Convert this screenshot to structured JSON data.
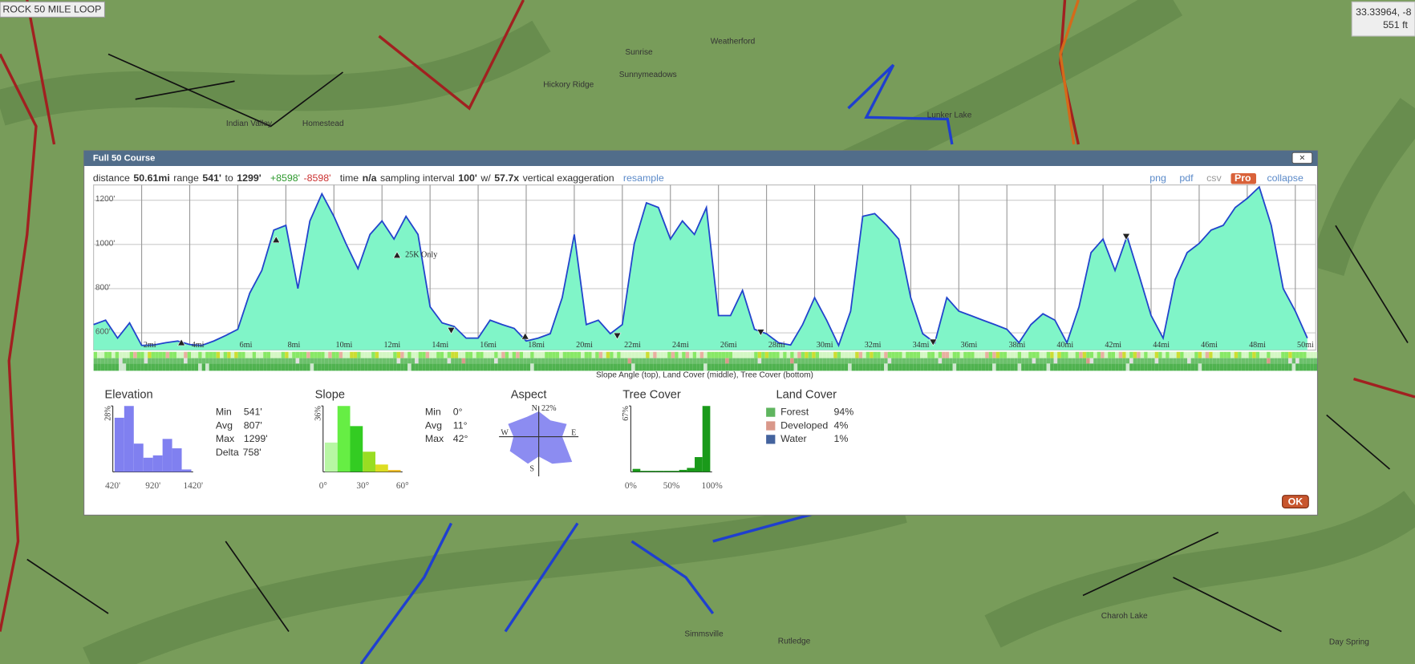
{
  "map": {
    "route_label": "ROCK 50 MILE LOOP",
    "coords": "33.33964, -8",
    "coords_elevation": "551 ft",
    "labels": [
      "Weatherford",
      "Sunrise",
      "Sunnymeadows",
      "Hickory Ridge",
      "Indian Valley",
      "Homestead",
      "Lunker Lake",
      "Simmsville",
      "Rutledge",
      "Charoh Lake",
      "Day Spring"
    ]
  },
  "dialog": {
    "title": "Full 50 Course",
    "close": "×",
    "ok": "OK",
    "stats": [
      "distance",
      "50.61mi",
      "range",
      "541'",
      "to",
      "1299'",
      "+8598'",
      "-8598'",
      "time",
      "n/a",
      "sampling interval",
      "100'",
      "w/",
      "57.7x",
      "vertical exaggeration",
      "resample"
    ],
    "links": [
      "png",
      "pdf",
      "csv",
      "Pro",
      "collapse"
    ]
  },
  "profile": {
    "xlim": [
      0,
      50.85
    ],
    "ylim": [
      522,
      1269
    ],
    "xticks": [
      {
        "value": 2,
        "label": "2mi"
      },
      {
        "value": 4,
        "label": "4mi"
      },
      {
        "value": 6,
        "label": "6mi"
      },
      {
        "value": 8,
        "label": "8mi"
      },
      {
        "value": 10,
        "label": "10mi"
      },
      {
        "value": 12,
        "label": "12mi"
      },
      {
        "value": 14,
        "label": "14mi"
      },
      {
        "value": 16,
        "label": "16mi"
      },
      {
        "value": 18,
        "label": "18mi"
      },
      {
        "value": 20,
        "label": "20mi"
      },
      {
        "value": 22,
        "label": "22mi"
      },
      {
        "value": 24,
        "label": "24mi"
      },
      {
        "value": 26,
        "label": "26mi"
      },
      {
        "value": 28,
        "label": "28mi"
      },
      {
        "value": 30,
        "label": "30mi"
      },
      {
        "value": 32,
        "label": "32mi"
      },
      {
        "value": 34,
        "label": "34mi"
      },
      {
        "value": 36,
        "label": "36mi"
      },
      {
        "value": 38,
        "label": "38mi"
      },
      {
        "value": 40,
        "label": "40mi"
      },
      {
        "value": 42,
        "label": "42mi"
      },
      {
        "value": 44,
        "label": "44mi"
      },
      {
        "value": 46,
        "label": "46mi"
      },
      {
        "value": 48,
        "label": "48mi"
      },
      {
        "value": 50,
        "label": "50mi"
      }
    ],
    "yticks": [
      {
        "value": 600,
        "label": "600'"
      },
      {
        "value": 800,
        "label": "800'"
      },
      {
        "value": 1000,
        "label": "1000'"
      },
      {
        "value": 1200,
        "label": "1200'"
      }
    ],
    "x": [
      0,
      0.5,
      1,
      1.5,
      2,
      2.5,
      3,
      3.5,
      4,
      4.5,
      5,
      5.5,
      6,
      6.5,
      7,
      7.5,
      8,
      8.5,
      9,
      9.5,
      10,
      10.5,
      11,
      11.5,
      12,
      12.5,
      13,
      13.5,
      14,
      14.5,
      15,
      15.5,
      16,
      16.5,
      17,
      17.5,
      18,
      18.5,
      19,
      19.5,
      20,
      20.5,
      21,
      21.5,
      22,
      22.5,
      23,
      23.5,
      24,
      24.5,
      25,
      25.5,
      26,
      26.5,
      27,
      27.5,
      28,
      28.5,
      29,
      29.5,
      30,
      30.5,
      31,
      31.5,
      32,
      32.5,
      33,
      33.5,
      34,
      34.5,
      35,
      35.5,
      36,
      36.5,
      37,
      37.5,
      38,
      38.5,
      39,
      39.5,
      40,
      40.5,
      41,
      41.5,
      42,
      42.5,
      43,
      43.5,
      44,
      44.5,
      45,
      45.5,
      46,
      46.5,
      47,
      47.5,
      48,
      48.5,
      49,
      49.5,
      50,
      50.5
    ],
    "elevation": [
      637,
      657,
      576,
      645,
      543,
      545,
      555,
      563,
      547,
      543,
      563,
      588,
      616,
      780,
      882,
      1065,
      1086,
      800,
      1106,
      1229,
      1127,
      1004,
      890,
      1045,
      1106,
      1024,
      1127,
      1045,
      718,
      645,
      629,
      576,
      576,
      657,
      637,
      620,
      563,
      576,
      596,
      759,
      1045,
      637,
      657,
      596,
      637,
      1004,
      1188,
      1167,
      1024,
      1106,
      1045,
      1167,
      678,
      678,
      792,
      616,
      596,
      555,
      545,
      637,
      759,
      657,
      543,
      698,
      1127,
      1139,
      1086,
      1024,
      759,
      596,
      555,
      759,
      698,
      678,
      657,
      637,
      616,
      555,
      637,
      686,
      657,
      555,
      718,
      963,
      1024,
      882,
      1037,
      861,
      678,
      576,
      841,
      963,
      1004,
      1065,
      1086,
      1167,
      1208,
      1260,
      1086,
      800,
      698,
      576
    ],
    "annotation": "25K Only",
    "caption": "Slope Angle (top), Land Cover (middle), Tree Cover (bottom)"
  },
  "elevation_hist": {
    "title": "Elevation",
    "ylim": [
      0,
      28
    ],
    "yticks": [
      {
        "value": 28,
        "label": "28%"
      }
    ],
    "values": [
      23,
      28,
      12,
      6,
      7,
      14,
      10,
      1
    ],
    "x_labels": [
      "420'",
      "920'",
      "1420'"
    ],
    "stats": [
      [
        "Min",
        "541'"
      ],
      [
        "Avg",
        "807'"
      ],
      [
        "Max",
        "1299'"
      ],
      [
        "Delta",
        "758'"
      ]
    ]
  },
  "slope_hist": {
    "title": "Slope",
    "ylim": [
      0,
      36
    ],
    "yticks": [
      {
        "value": 36,
        "label": "36%"
      }
    ],
    "values": [
      16,
      36,
      25,
      11,
      4,
      1
    ],
    "colors": [
      "#b8f7a4",
      "#66ee44",
      "#33cc22",
      "#99dd22",
      "#dddd22",
      "#eebb22"
    ],
    "x_labels": [
      "0°",
      "30°",
      "60°"
    ],
    "stats": [
      [
        "Min",
        "0°"
      ],
      [
        "Avg",
        "11°"
      ],
      [
        "Max",
        "42°"
      ]
    ]
  },
  "aspect": {
    "title": "Aspect",
    "n": "N",
    "max": "22%",
    "e": "E",
    "s": "S",
    "w": "W"
  },
  "tree_hist": {
    "title": "Tree Cover",
    "ylim": [
      0,
      67
    ],
    "yticks": [
      {
        "value": 67,
        "label": "67%"
      }
    ],
    "values": [
      3,
      1,
      1,
      1,
      1,
      1,
      2,
      4,
      15,
      67
    ],
    "x_labels": [
      "0%",
      "50%",
      "100%"
    ]
  },
  "land_cover": {
    "title": "Land Cover",
    "rows": [
      {
        "name": "Forest",
        "value": "94%",
        "color": "#5fb55f"
      },
      {
        "name": "Developed",
        "value": "4%",
        "color": "#d9988a"
      },
      {
        "name": "Water",
        "value": "1%",
        "color": "#44639e"
      }
    ]
  }
}
